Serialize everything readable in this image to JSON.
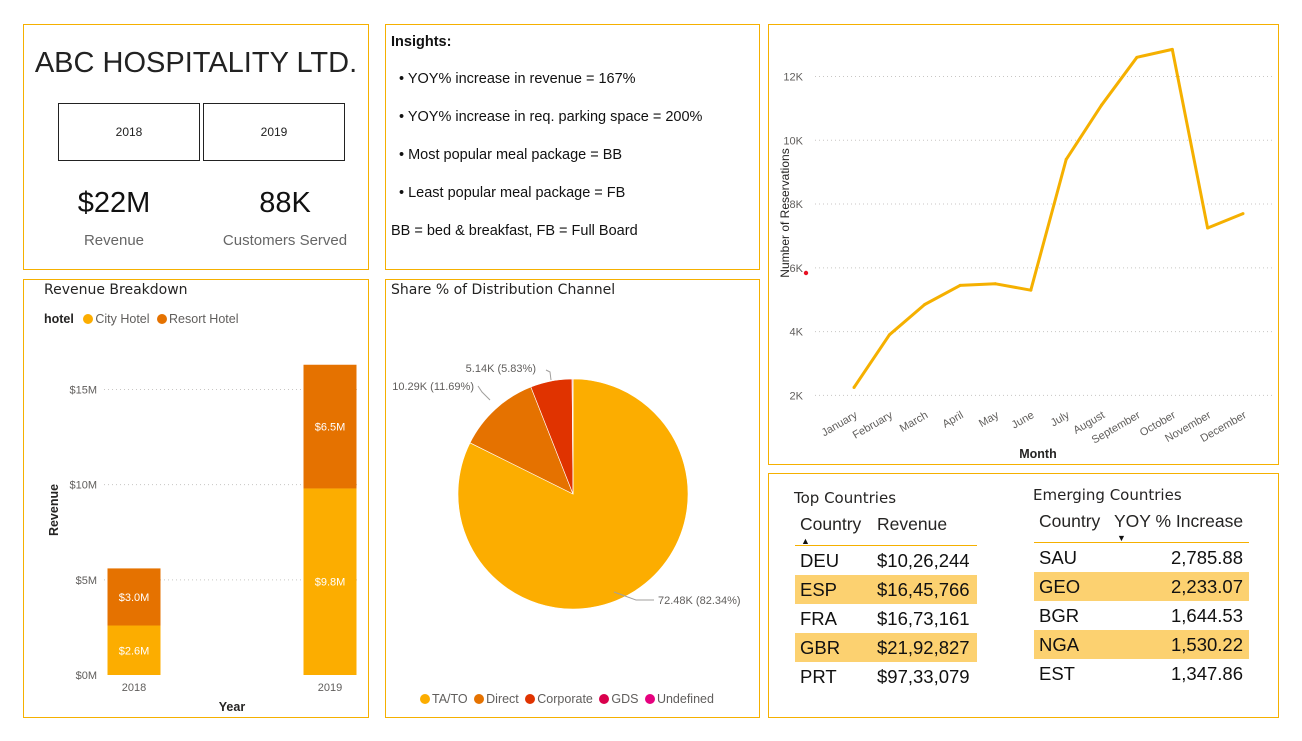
{
  "kpi": {
    "company": "ABC HOSPITALITY LTD.",
    "year_buttons": [
      "2018",
      "2019"
    ],
    "revenue_value": "$22M",
    "revenue_label": "Revenue",
    "customers_value": "88K",
    "customers_label": "Customers Served"
  },
  "insights": {
    "title": "Insights:",
    "bullets": [
      "• YOY% increase in revenue =  167%",
      "• YOY% increase in req. parking space = 200%",
      "• Most popular meal package = BB",
      "• Least popular meal package = FB"
    ],
    "footnote": "BB = bed & breakfast, FB = Full Board"
  },
  "colors": {
    "panel_border": "#f5b000",
    "city_hotel": "#fcad00",
    "resort_hotel": "#e57200",
    "line": "#f5b000",
    "corporate": "#e03300",
    "gds": "#d9004c",
    "undefined": "#e6007e"
  },
  "reservations_chart": {
    "ylabel": "Number of Reservations",
    "xlabel": "Month",
    "y_ticks": [
      "2K",
      "4K",
      "6K",
      "8K",
      "10K",
      "12K"
    ]
  },
  "revenue_breakdown": {
    "title": "Revenue Breakdown",
    "legend_title": "hotel",
    "legend": [
      "City Hotel",
      "Resort Hotel"
    ],
    "ylabel": "Revenue",
    "xlabel": "Year",
    "y_ticks": [
      "$0M",
      "$5M",
      "$10M",
      "$15M"
    ]
  },
  "distribution": {
    "title": "Share % of Distribution Channel",
    "legend": [
      "TA/TO",
      "Direct",
      "Corporate",
      "GDS",
      "Undefined"
    ]
  },
  "top_countries": {
    "title": "Top Countries",
    "columns": [
      "Country",
      "Revenue"
    ],
    "rows": [
      [
        "DEU",
        "$10,26,244"
      ],
      [
        "ESP",
        "$16,45,766"
      ],
      [
        "FRA",
        "$16,73,161"
      ],
      [
        "GBR",
        "$21,92,827"
      ],
      [
        "PRT",
        "$97,33,079"
      ]
    ]
  },
  "emerging_countries": {
    "title": "Emerging Countries",
    "columns": [
      "Country",
      "YOY % Increase"
    ],
    "rows": [
      [
        "SAU",
        "2,785.88"
      ],
      [
        "GEO",
        "2,233.07"
      ],
      [
        "BGR",
        "1,644.53"
      ],
      [
        "NGA",
        "1,530.22"
      ],
      [
        "EST",
        "1,347.86"
      ]
    ]
  },
  "chart_data": [
    {
      "type": "line",
      "xlabel": "Month",
      "ylabel": "Number of Reservations",
      "x": [
        "January",
        "February",
        "March",
        "April",
        "May",
        "June",
        "July",
        "August",
        "September",
        "October",
        "November",
        "December"
      ],
      "series": [
        {
          "values": [
            2250,
            3900,
            4850,
            5450,
            5500,
            5300,
            9400,
            11100,
            12600,
            12850,
            7250,
            7700
          ]
        }
      ],
      "ylim": [
        1700,
        13300
      ],
      "grid": true
    },
    {
      "type": "bar",
      "stacked": true,
      "title": "Revenue Breakdown",
      "xlabel": "Year",
      "ylabel": "Revenue",
      "categories": [
        "2018",
        "2019"
      ],
      "series": [
        {
          "name": "City Hotel",
          "values": [
            2.6,
            9.8
          ],
          "labels": [
            "$2.6M",
            "$9.8M"
          ]
        },
        {
          "name": "Resort Hotel",
          "values": [
            3.0,
            6.5
          ],
          "labels": [
            "$3.0M",
            "$6.5M"
          ]
        }
      ],
      "ylim": [
        0,
        17
      ],
      "legend": "top-left"
    },
    {
      "type": "pie",
      "title": "Share % of Distribution Channel",
      "categories": [
        "TA/TO",
        "Direct",
        "Corporate",
        "GDS",
        "Undefined"
      ],
      "values": [
        72.48,
        10.29,
        5.14,
        0.11,
        0.004
      ],
      "percents": [
        82.34,
        11.69,
        5.83,
        0.13,
        0.01
      ],
      "labels": [
        "72.48K (82.34%)",
        "10.29K (11.69%)",
        "5.14K (5.83%)",
        "",
        ""
      ],
      "legend": "bottom"
    }
  ]
}
